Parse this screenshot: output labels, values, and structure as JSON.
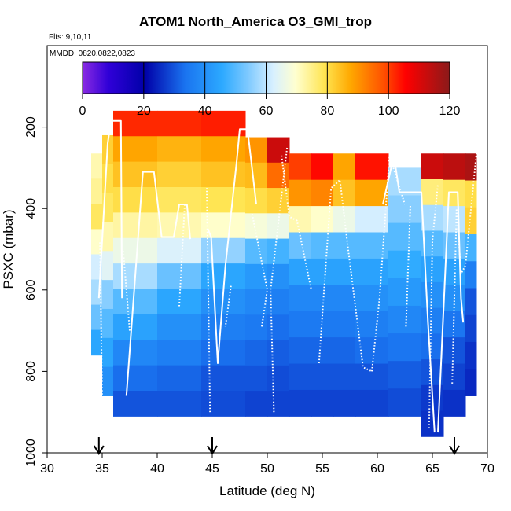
{
  "chart_data": {
    "type": "heatmap",
    "title": "ATOM1 North_America O3_GMI_trop",
    "flights_label": "Flts: 9,10,11",
    "dates_label": "MMDD: 0820,0822,0823",
    "xlabel": "Latitude (deg N)",
    "ylabel": "PSXC (mbar)",
    "xlim": [
      30,
      70
    ],
    "ylim": [
      1000,
      0
    ],
    "xticks": [
      "30",
      "35",
      "40",
      "45",
      "50",
      "55",
      "60",
      "65",
      "70"
    ],
    "yticks": [
      "200",
      "400",
      "600",
      "800",
      "1000"
    ],
    "colorbar": {
      "range": [
        0,
        120
      ],
      "ticks": [
        "0",
        "20",
        "40",
        "60",
        "80",
        "100",
        "120"
      ]
    },
    "arrows_at_latitude": [
      34.7,
      45,
      67
    ],
    "columns": [
      {
        "lat_start": 34,
        "lat_end": 35,
        "top": 265,
        "bottom": 760,
        "values": [
          72,
          74,
          78,
          70,
          62,
          58,
          52,
          45
        ]
      },
      {
        "lat_start": 35,
        "lat_end": 36,
        "top": 220,
        "bottom": 860,
        "values": [
          82,
          80,
          78,
          72,
          64,
          55,
          50,
          45,
          40
        ]
      },
      {
        "lat_start": 36,
        "lat_end": 40,
        "top": 160,
        "bottom": 910,
        "values": [
          102,
          88,
          84,
          80,
          73,
          66,
          58,
          50,
          44,
          38,
          33,
          30
        ]
      },
      {
        "lat_start": 40,
        "lat_end": 44,
        "top": 160,
        "bottom": 910,
        "values": [
          102,
          86,
          82,
          78,
          72,
          63,
          52,
          45,
          40,
          36,
          32,
          30
        ]
      },
      {
        "lat_start": 44,
        "lat_end": 48,
        "top": 160,
        "bottom": 910,
        "values": [
          103,
          88,
          84,
          79,
          70,
          56,
          45,
          40,
          36,
          33,
          30,
          29
        ]
      },
      {
        "lat_start": 48,
        "lat_end": 50,
        "top": 225,
        "bottom": 910,
        "values": [
          90,
          85,
          80,
          68,
          50,
          42,
          38,
          35,
          32,
          30,
          28
        ]
      },
      {
        "lat_start": 50,
        "lat_end": 52,
        "top": 225,
        "bottom": 910,
        "values": [
          112,
          95,
          82,
          66,
          48,
          40,
          36,
          33,
          31,
          29,
          28
        ]
      },
      {
        "lat_start": 52,
        "lat_end": 54,
        "top": 265,
        "bottom": 910,
        "values": [
          100,
          90,
          72,
          52,
          44,
          38,
          35,
          32,
          30,
          28
        ]
      },
      {
        "lat_start": 54,
        "lat_end": 56,
        "top": 265,
        "bottom": 910,
        "values": [
          105,
          92,
          70,
          50,
          44,
          38,
          35,
          32,
          30,
          28
        ]
      },
      {
        "lat_start": 56,
        "lat_end": 58,
        "top": 265,
        "bottom": 910,
        "values": [
          88,
          84,
          66,
          50,
          44,
          38,
          35,
          32,
          30,
          28
        ]
      },
      {
        "lat_start": 58,
        "lat_end": 61,
        "top": 265,
        "bottom": 910,
        "values": [
          104,
          88,
          62,
          50,
          44,
          40,
          36,
          33,
          30,
          28
        ]
      },
      {
        "lat_start": 61,
        "lat_end": 64,
        "top": 300,
        "bottom": 910,
        "values": [
          58,
          55,
          50,
          46,
          42,
          38,
          34,
          31,
          29
        ]
      },
      {
        "lat_start": 64,
        "lat_end": 66,
        "top": 265,
        "bottom": 960,
        "values": [
          112,
          76,
          58,
          50,
          44,
          40,
          36,
          33,
          30,
          27,
          26
        ]
      },
      {
        "lat_start": 66,
        "lat_end": 68,
        "top": 265,
        "bottom": 910,
        "values": [
          114,
          78,
          60,
          52,
          44,
          40,
          34,
          30,
          28,
          26
        ]
      },
      {
        "lat_start": 68,
        "lat_end": 69,
        "top": 265,
        "bottom": 860,
        "values": [
          116,
          80,
          82,
          48,
          36,
          30,
          28,
          26,
          25
        ]
      }
    ],
    "flight_tracks_solid": [
      [
        [
          34.7,
          620
        ],
        [
          35.5,
          240
        ],
        [
          35.8,
          185
        ],
        [
          36.7,
          185
        ],
        [
          36.8,
          620
        ]
      ],
      [
        [
          37.2,
          860
        ],
        [
          38.7,
          310
        ],
        [
          39.7,
          310
        ],
        [
          40.4,
          470
        ],
        [
          41.5,
          470
        ],
        [
          42,
          390
        ],
        [
          42.7,
          390
        ],
        [
          43,
          475
        ]
      ],
      [
        [
          44.6,
          450
        ],
        [
          44.9,
          470
        ],
        [
          45.5,
          780
        ],
        [
          46.2,
          540
        ],
        [
          47.2,
          290
        ],
        [
          47.5,
          205
        ],
        [
          48.2,
          205
        ],
        [
          49,
          390
        ]
      ],
      [
        [
          60.5,
          390
        ],
        [
          61.5,
          270
        ],
        [
          62,
          360
        ],
        [
          64,
          360
        ],
        [
          64.6,
          680
        ],
        [
          65.2,
          950
        ]
      ],
      [
        [
          65.5,
          950
        ],
        [
          66.5,
          360
        ],
        [
          67.3,
          360
        ],
        [
          67.6,
          620
        ],
        [
          67.8,
          680
        ]
      ]
    ],
    "flight_tracks_dotted": [
      [
        [
          35,
          880
        ],
        [
          34.8,
          480
        ]
      ],
      [
        [
          37.5,
          700
        ],
        [
          36.9,
          500
        ]
      ],
      [
        [
          42,
          640
        ],
        [
          42.5,
          390
        ]
      ],
      [
        [
          44.8,
          900
        ],
        [
          44.5,
          350
        ]
      ],
      [
        [
          46.7,
          590
        ],
        [
          46.2,
          690
        ]
      ],
      [
        [
          49.5,
          690
        ],
        [
          50,
          600
        ],
        [
          48.6,
          410
        ]
      ],
      [
        [
          50.6,
          900
        ],
        [
          50.3,
          600
        ],
        [
          51.8,
          250
        ]
      ],
      [
        [
          51.3,
          270
        ],
        [
          52,
          420
        ],
        [
          52.7,
          430
        ],
        [
          54,
          600
        ]
      ],
      [
        [
          54.7,
          780
        ],
        [
          55.8,
          350
        ],
        [
          56.6,
          330
        ],
        [
          57.3,
          490
        ],
        [
          58.7,
          790
        ],
        [
          59.5,
          800
        ]
      ],
      [
        [
          59.5,
          800
        ],
        [
          60.2,
          620
        ],
        [
          61.1,
          270
        ],
        [
          62.5,
          390
        ]
      ],
      [
        [
          62.6,
          690
        ],
        [
          63,
          390
        ]
      ],
      [
        [
          64.7,
          940
        ],
        [
          65,
          480
        ],
        [
          65.5,
          340
        ]
      ],
      [
        [
          66.8,
          830
        ],
        [
          67.2,
          400
        ],
        [
          67.6,
          560
        ],
        [
          68,
          540
        ],
        [
          69,
          265
        ],
        [
          69.3,
          200
        ]
      ]
    ]
  }
}
